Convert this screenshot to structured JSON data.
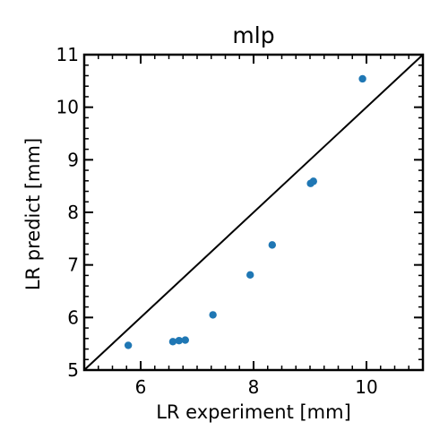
{
  "chart_data": {
    "type": "scatter",
    "title": "mlp",
    "xlabel": "LR experiment [mm]",
    "ylabel": "LR predict [mm]",
    "xlim": [
      5.0,
      11.0
    ],
    "ylim": [
      5.0,
      11.0
    ],
    "x_ticks": [
      6,
      8,
      10
    ],
    "y_ticks": [
      5,
      6,
      7,
      8,
      9,
      10,
      11
    ],
    "x_minor_step": 0.25,
    "y_minor_step": 0.2,
    "grid": false,
    "reference_line": {
      "kind": "identity",
      "color": "#000000"
    },
    "series": [
      {
        "color": "#1f77b4",
        "points": [
          {
            "x": 5.78,
            "y": 5.47
          },
          {
            "x": 6.57,
            "y": 5.54
          },
          {
            "x": 6.68,
            "y": 5.56
          },
          {
            "x": 6.79,
            "y": 5.57
          },
          {
            "x": 7.28,
            "y": 6.05
          },
          {
            "x": 7.94,
            "y": 6.81
          },
          {
            "x": 8.33,
            "y": 7.38
          },
          {
            "x": 9.01,
            "y": 8.55
          },
          {
            "x": 9.06,
            "y": 8.59
          },
          {
            "x": 9.93,
            "y": 10.54
          }
        ]
      }
    ]
  }
}
